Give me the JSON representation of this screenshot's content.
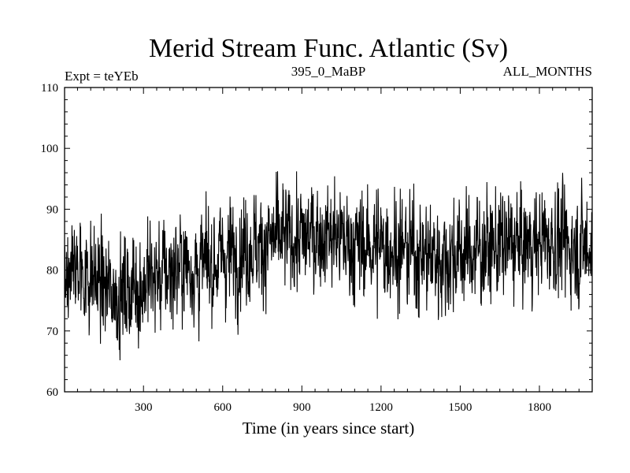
{
  "chart_data": {
    "type": "line",
    "title": "Merid Stream Func. Atlantic (Sv)",
    "subtitle_left": "Expt = teYEb",
    "subtitle_center": "395_0_MaBP",
    "subtitle_right": "ALL_MONTHS",
    "xlabel": "Time (in years since start)",
    "ylabel": "",
    "xlim": [
      1,
      2000
    ],
    "ylim": [
      60,
      110
    ],
    "x_ticks": [
      300,
      600,
      900,
      1200,
      1500,
      1800
    ],
    "y_ticks": [
      60,
      70,
      80,
      90,
      100,
      110
    ],
    "grid": false,
    "series": [
      {
        "color": "#000000",
        "x": [
          1,
          50,
          100,
          150,
          200,
          250,
          300,
          350,
          400,
          450,
          500,
          550,
          600,
          650,
          700,
          750,
          800,
          850,
          900,
          950,
          1000,
          1050,
          1100,
          1150,
          1200,
          1250,
          1300,
          1350,
          1400,
          1450,
          1500,
          1550,
          1600,
          1650,
          1700,
          1750,
          1800,
          1850,
          1900,
          1950,
          2000
        ],
        "y": [
          80,
          80,
          79,
          77,
          76,
          77,
          78,
          79,
          80,
          81,
          80,
          81,
          82,
          83,
          84,
          84,
          85,
          85,
          85,
          86,
          86,
          85,
          84,
          84,
          84,
          84,
          83,
          83,
          82,
          82,
          83,
          83,
          84,
          84,
          84,
          84,
          85,
          85,
          84,
          84,
          84
        ]
      }
    ]
  }
}
